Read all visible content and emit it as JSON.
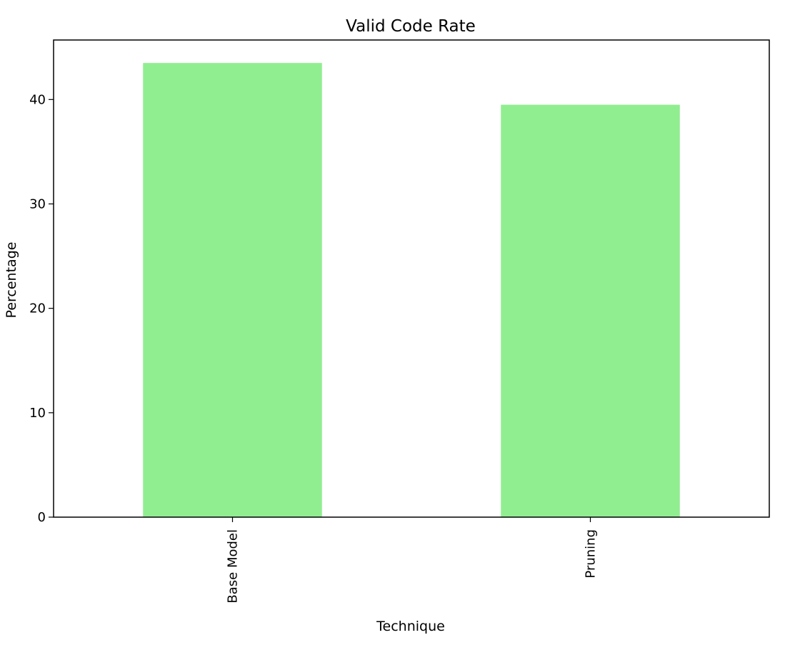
{
  "chart_data": {
    "type": "bar",
    "title": "Valid Code Rate",
    "xlabel": "Technique",
    "ylabel": "Percentage",
    "categories": [
      "Base Model",
      "Pruning"
    ],
    "values": [
      43.5,
      39.5
    ],
    "ylim": [
      0,
      45.7
    ],
    "yticks": [
      0,
      10,
      20,
      30,
      40
    ],
    "bar_color": "#90ee90",
    "x_tick_rotation": "vertical",
    "grid": false,
    "legend": "none"
  }
}
